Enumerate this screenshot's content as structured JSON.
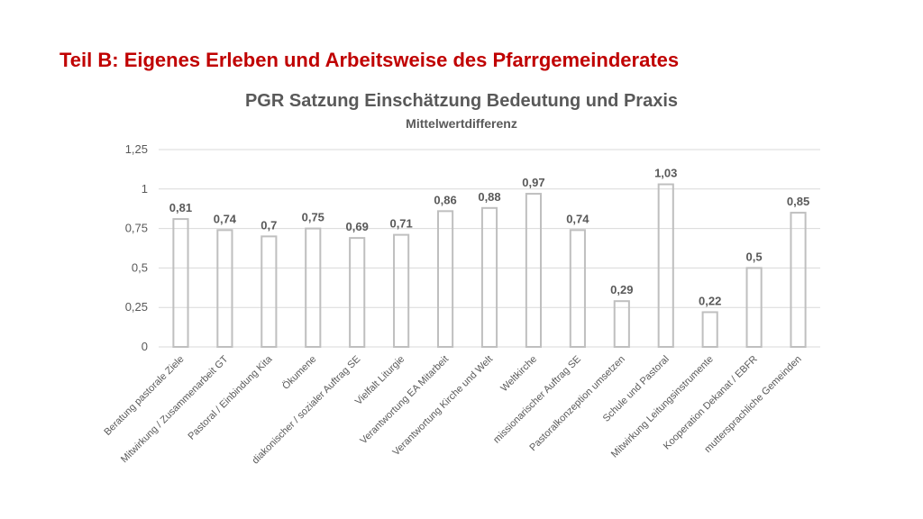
{
  "slide": {
    "heading": "Teil B: Eigenes Erleben und Arbeitsweise des Pfarrgemeinderates"
  },
  "colors": {
    "heading": "#c00000",
    "text": "#595959",
    "bar_stroke": "#bfbfbf",
    "grid": "#d9d9d9"
  },
  "chart_data": {
    "type": "bar",
    "title": "PGR Satzung Einschätzung Bedeutung und Praxis",
    "subtitle": "Mittelwertdifferenz",
    "xlabel": "",
    "ylabel": "",
    "ylim": [
      0,
      1.25
    ],
    "yticks": [
      0,
      0.25,
      0.5,
      0.75,
      1,
      1.25
    ],
    "ytick_labels": [
      "0",
      "0,25",
      "0,5",
      "0,75",
      "1",
      "1,25"
    ],
    "grid": true,
    "legend": "none",
    "bar_fill": "none",
    "categories": [
      "Beratung pastorale Ziele",
      "Mitwirkung / Zusammenarbeit GT",
      "Pastoral / Einbindung Kita",
      "Ökumene",
      "diakonischer / sozialer Auftrag SE",
      "Vielfalt Liturgie",
      "Verantwortung EA Mitarbeit",
      "Verantwortung Kirche und Welt",
      "Weltkirche",
      "missionarischer Auftrag SE",
      "Pastoralkonzeption umsetzen",
      "Schule und Pastoral",
      "Mitwirkung Leitungsinstrumente",
      "Kooperation Dekanat / EBFR",
      "muttersprachliche Gemeinden"
    ],
    "values": [
      0.81,
      0.74,
      0.7,
      0.75,
      0.69,
      0.71,
      0.86,
      0.88,
      0.97,
      0.74,
      0.29,
      1.03,
      0.22,
      0.5,
      0.85
    ],
    "value_labels": [
      "0,81",
      "0,74",
      "0,7",
      "0,75",
      "0,69",
      "0,71",
      "0,86",
      "0,88",
      "0,97",
      "0,74",
      "0,29",
      "1,03",
      "0,22",
      "0,5",
      "0,85"
    ]
  }
}
